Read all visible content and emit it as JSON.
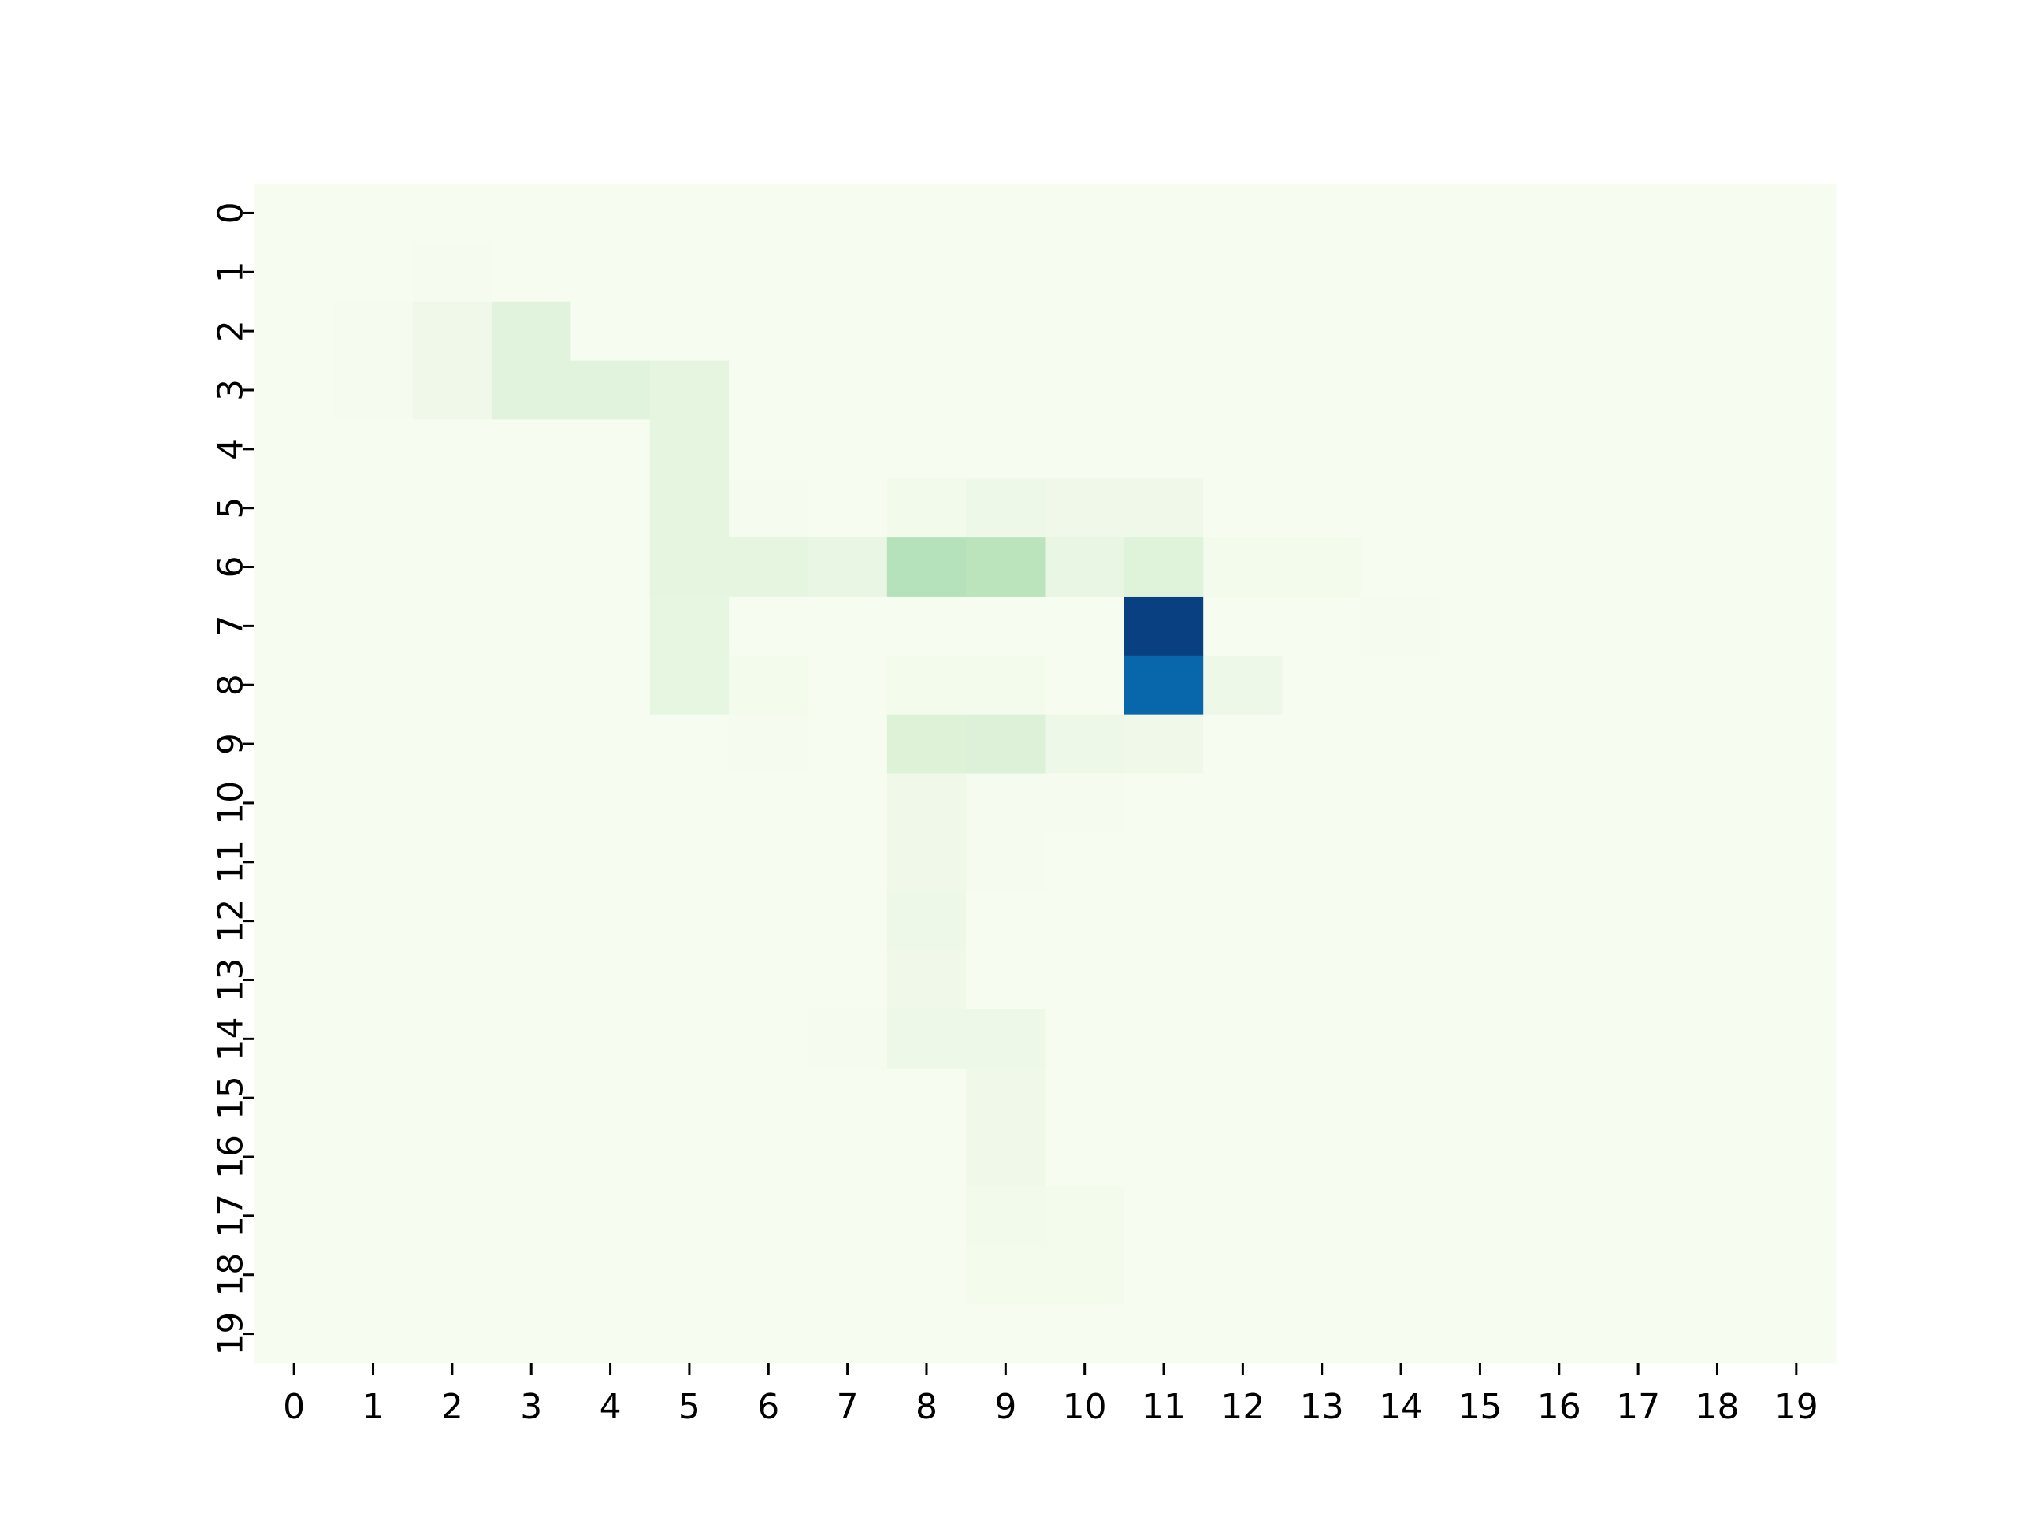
{
  "chart_data": {
    "type": "heatmap",
    "title": "",
    "xlabel": "",
    "ylabel": "",
    "colormap": "GnBu",
    "colorbar": false,
    "x_ticks": [
      "0",
      "1",
      "2",
      "3",
      "4",
      "5",
      "6",
      "7",
      "8",
      "9",
      "10",
      "11",
      "12",
      "13",
      "14",
      "15",
      "16",
      "17",
      "18",
      "19"
    ],
    "y_ticks": [
      "0",
      "1",
      "2",
      "3",
      "4",
      "5",
      "6",
      "7",
      "8",
      "9",
      "10",
      "11",
      "12",
      "13",
      "14",
      "15",
      "16",
      "17",
      "18",
      "19"
    ],
    "value_range": [
      0,
      1
    ],
    "values": [
      [
        0,
        0,
        0,
        0,
        0,
        0,
        0,
        0,
        0,
        0,
        0,
        0,
        0,
        0,
        0,
        0,
        0,
        0,
        0,
        0
      ],
      [
        0,
        0,
        0.01,
        0,
        0,
        0,
        0,
        0,
        0,
        0,
        0,
        0,
        0,
        0,
        0,
        0,
        0,
        0,
        0,
        0
      ],
      [
        0,
        0.01,
        0.04,
        0.12,
        0,
        0,
        0,
        0,
        0,
        0,
        0,
        0,
        0,
        0,
        0,
        0,
        0,
        0,
        0,
        0
      ],
      [
        0,
        0.01,
        0.04,
        0.12,
        0.12,
        0.1,
        0,
        0,
        0,
        0,
        0,
        0,
        0,
        0,
        0,
        0,
        0,
        0,
        0,
        0
      ],
      [
        0,
        0,
        0,
        0,
        0,
        0.1,
        0,
        0,
        0,
        0,
        0,
        0,
        0,
        0,
        0,
        0,
        0,
        0,
        0,
        0
      ],
      [
        0,
        0,
        0,
        0,
        0,
        0.1,
        0.01,
        0,
        0.03,
        0.05,
        0.04,
        0.04,
        0,
        0,
        0,
        0,
        0,
        0,
        0,
        0
      ],
      [
        0,
        0,
        0,
        0,
        0,
        0.1,
        0.1,
        0.08,
        0.33,
        0.31,
        0.08,
        0.13,
        0.02,
        0.02,
        0,
        0,
        0,
        0,
        0,
        0
      ],
      [
        0,
        0,
        0,
        0,
        0,
        0.09,
        0,
        0,
        0,
        0,
        0,
        1.0,
        0,
        0,
        0.01,
        0,
        0,
        0,
        0,
        0
      ],
      [
        0,
        0,
        0,
        0,
        0,
        0.09,
        0.02,
        0,
        0.02,
        0.02,
        0,
        0.88,
        0.05,
        0,
        0,
        0,
        0,
        0,
        0,
        0
      ],
      [
        0,
        0,
        0,
        0,
        0,
        0,
        0.01,
        0,
        0.14,
        0.15,
        0.05,
        0.04,
        0,
        0,
        0,
        0,
        0,
        0,
        0,
        0
      ],
      [
        0,
        0,
        0,
        0,
        0,
        0,
        0,
        0,
        0.04,
        0.01,
        0.01,
        0,
        0,
        0,
        0,
        0,
        0,
        0,
        0,
        0
      ],
      [
        0,
        0,
        0,
        0,
        0,
        0,
        0,
        0,
        0.04,
        0.01,
        0,
        0,
        0,
        0,
        0,
        0,
        0,
        0,
        0,
        0
      ],
      [
        0,
        0,
        0,
        0,
        0,
        0,
        0,
        0,
        0.05,
        0,
        0,
        0,
        0,
        0,
        0,
        0,
        0,
        0,
        0,
        0
      ],
      [
        0,
        0,
        0,
        0,
        0,
        0,
        0,
        0,
        0.04,
        0,
        0,
        0,
        0,
        0,
        0,
        0,
        0,
        0,
        0,
        0
      ],
      [
        0,
        0,
        0,
        0,
        0,
        0,
        0,
        0.01,
        0.05,
        0.05,
        0,
        0,
        0,
        0,
        0,
        0,
        0,
        0,
        0,
        0
      ],
      [
        0,
        0,
        0,
        0,
        0,
        0,
        0,
        0,
        0,
        0.04,
        0,
        0,
        0,
        0,
        0,
        0,
        0,
        0,
        0,
        0
      ],
      [
        0,
        0,
        0,
        0,
        0,
        0,
        0,
        0,
        0,
        0.04,
        0,
        0,
        0,
        0,
        0,
        0,
        0,
        0,
        0,
        0
      ],
      [
        0,
        0,
        0,
        0,
        0,
        0,
        0,
        0,
        0,
        0.03,
        0.02,
        0,
        0,
        0,
        0,
        0,
        0,
        0,
        0,
        0
      ],
      [
        0,
        0,
        0,
        0,
        0,
        0,
        0,
        0,
        0,
        0.02,
        0.02,
        0,
        0,
        0,
        0,
        0,
        0,
        0,
        0,
        0
      ],
      [
        0,
        0,
        0,
        0,
        0,
        0,
        0,
        0,
        0,
        0,
        0,
        0,
        0,
        0,
        0,
        0,
        0,
        0,
        0,
        0
      ]
    ]
  }
}
